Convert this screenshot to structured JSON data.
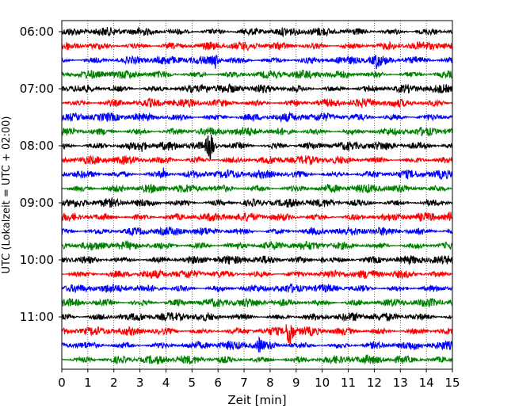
{
  "chart_data": {
    "type": "line",
    "title": "",
    "xlabel": "Zeit  [min]",
    "ylabel": "UTC (Lokalzeit = UTC + 02:00)",
    "xlim": [
      0,
      15
    ],
    "x_ticks": [
      0,
      1,
      2,
      3,
      4,
      5,
      6,
      7,
      8,
      9,
      10,
      11,
      12,
      13,
      14,
      15
    ],
    "y_tick_labels": [
      "06:00",
      "07:00",
      "08:00",
      "09:00",
      "10:00",
      "11:00"
    ],
    "y_tick_traces": [
      0,
      4,
      8,
      12,
      16,
      20
    ],
    "grid": "vertical dotted",
    "trace_count": 24,
    "trace_interval_min": 15,
    "color_cycle": [
      "#000000",
      "#ff0000",
      "#0000ff",
      "#008000"
    ],
    "events": [
      {
        "trace": 2,
        "x": 5.9,
        "amp": 1.0
      },
      {
        "trace": 2,
        "x": 12.1,
        "amp": 0.8
      },
      {
        "trace": 4,
        "x": 5.5,
        "amp": 0.8
      },
      {
        "trace": 8,
        "x": 5.7,
        "amp": 2.4
      },
      {
        "trace": 8,
        "x": 3.1,
        "amp": 0.7
      },
      {
        "trace": 10,
        "x": 3.9,
        "amp": 0.6
      },
      {
        "trace": 13,
        "x": 14.9,
        "amp": 0.5
      },
      {
        "trace": 16,
        "x": 10.0,
        "amp": 0.5
      },
      {
        "trace": 20,
        "x": 2.3,
        "amp": 0.5
      },
      {
        "trace": 21,
        "x": 8.75,
        "amp": 3.0
      },
      {
        "trace": 22,
        "x": 7.6,
        "amp": 0.9
      }
    ]
  }
}
